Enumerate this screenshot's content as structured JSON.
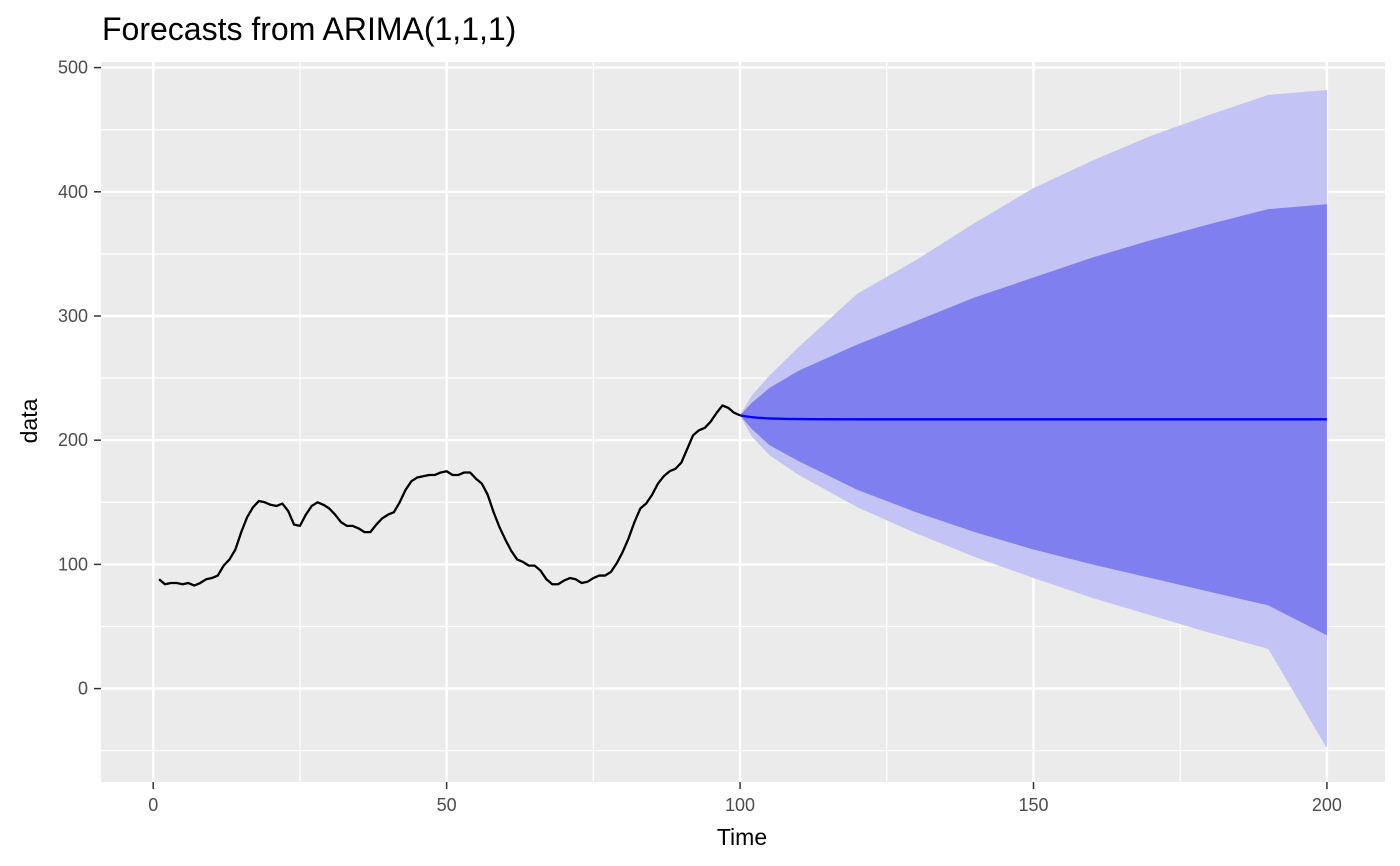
{
  "chart_data": {
    "type": "line",
    "title": "Forecasts from ARIMA(1,1,1)",
    "xlabel": "Time",
    "ylabel": "data",
    "xlim": [
      -8.9,
      209.9
    ],
    "ylim": [
      -75.2,
      504.5
    ],
    "x_ticks": [
      0,
      50,
      100,
      150,
      200
    ],
    "x_tick_labels": [
      "0",
      "50",
      "100",
      "150",
      "200"
    ],
    "y_ticks": [
      0,
      100,
      200,
      300,
      400,
      500
    ],
    "y_tick_labels": [
      "0",
      "100",
      "200",
      "300",
      "400",
      "500"
    ],
    "grid": true,
    "colors": {
      "panel": "#ebebeb",
      "grid": "#ffffff",
      "series": "#000000",
      "forecast": "#0000ff",
      "band_80": "#7f7fef",
      "band_95": "#c3c3f5"
    },
    "series": [
      {
        "x": [
          1,
          2,
          3,
          4,
          5,
          6,
          7,
          8,
          9,
          10,
          11,
          12,
          13,
          14,
          15,
          16,
          17,
          18,
          19,
          20,
          21,
          22,
          23,
          24,
          25,
          26,
          27,
          28,
          29,
          30,
          31,
          32,
          33,
          34,
          35,
          36,
          37,
          38,
          39,
          40,
          41,
          42,
          43,
          44,
          45,
          46,
          47,
          48,
          49,
          50,
          51,
          52,
          53,
          54,
          55,
          56,
          57,
          58,
          59,
          60,
          61,
          62,
          63,
          64,
          65,
          66,
          67,
          68,
          69,
          70,
          71,
          72,
          73,
          74,
          75,
          76,
          77,
          78,
          79,
          80,
          81,
          82,
          83,
          84,
          85,
          86,
          87,
          88,
          89,
          90,
          91,
          92,
          93,
          94,
          95,
          96,
          97,
          98,
          99,
          100
        ],
        "values": [
          88,
          84,
          85,
          85,
          84,
          85,
          83,
          85,
          88,
          89,
          91,
          99,
          104,
          112,
          126,
          138,
          146,
          151,
          150,
          148,
          147,
          149,
          143,
          132,
          131,
          140,
          147,
          150,
          148,
          145,
          140,
          134,
          131,
          131,
          129,
          126,
          126,
          132,
          137,
          140,
          142,
          150,
          160,
          167,
          170,
          171,
          172,
          172,
          174,
          175,
          172,
          172,
          174,
          174,
          169,
          165,
          156,
          142,
          130,
          120,
          111,
          104,
          102,
          99,
          99,
          95,
          88,
          84,
          84,
          87,
          89,
          88,
          85,
          86,
          89,
          91,
          91,
          94,
          101,
          110,
          121,
          134,
          145,
          149,
          156,
          165,
          171,
          175,
          177,
          182,
          193,
          204,
          208,
          210,
          215,
          222,
          228,
          226,
          222,
          220
        ]
      },
      {
        "name": "",
        "x": [
          100,
          101,
          102,
          103,
          105,
          108,
          112,
          120,
          130,
          150,
          175,
          200
        ],
        "values": [
          220,
          219.2,
          218.6,
          218.1,
          217.5,
          217.1,
          216.9,
          216.8,
          216.8,
          216.8,
          216.8,
          216.8
        ]
      }
    ],
    "bands": [
      {
        "level": 95,
        "x": [
          100,
          102,
          105,
          110,
          120,
          130,
          140,
          150,
          160,
          170,
          180,
          190,
          200
        ],
        "lower": [
          220,
          203,
          188,
          172,
          146,
          125,
          106,
          89,
          73,
          59,
          45,
          32,
          -48
        ],
        "upper": [
          220,
          236,
          252,
          275,
          318,
          345,
          375,
          403,
          425,
          445,
          462,
          478,
          482
        ]
      },
      {
        "level": 80,
        "x": [
          100,
          102,
          105,
          110,
          120,
          130,
          140,
          150,
          160,
          170,
          180,
          190,
          200
        ],
        "lower": [
          220,
          209,
          196,
          183,
          160,
          142,
          126,
          112,
          100,
          89,
          78,
          67,
          43
        ],
        "upper": [
          220,
          230,
          242,
          256,
          277,
          296,
          315,
          331,
          347,
          361,
          374,
          386,
          390
        ]
      }
    ]
  }
}
